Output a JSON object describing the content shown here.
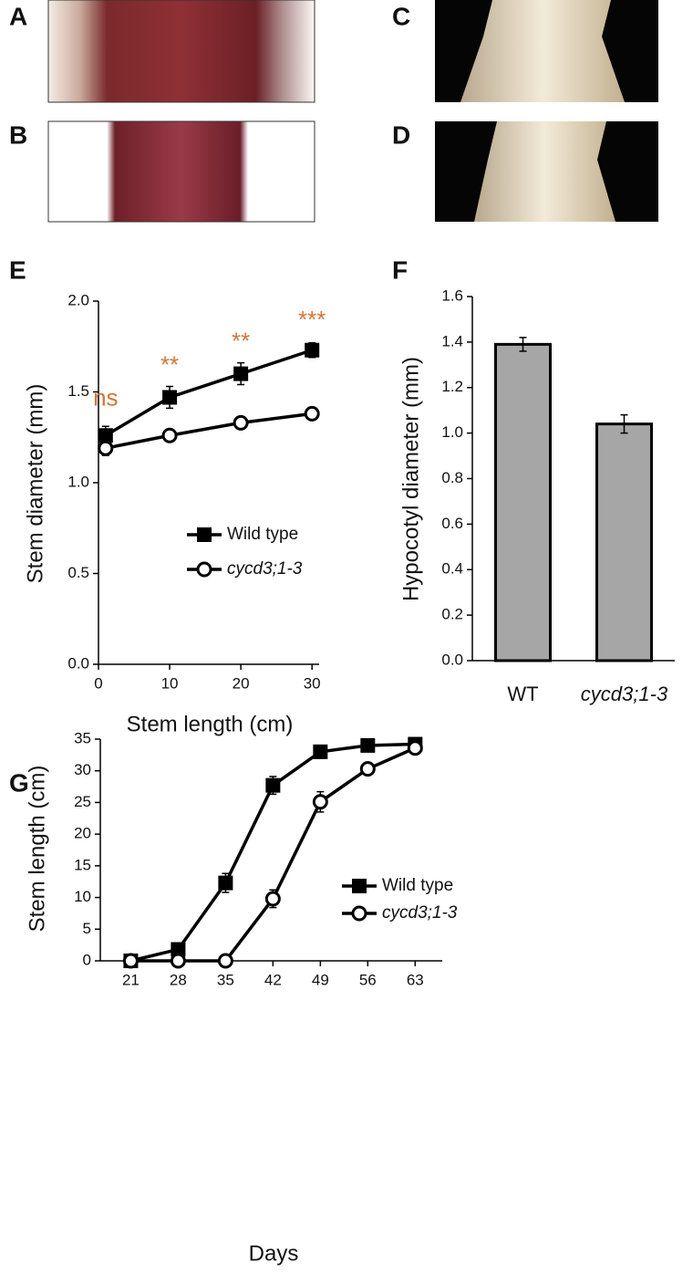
{
  "photo_panels": [
    "A",
    "B",
    "C",
    "D"
  ],
  "chart_data": [
    {
      "type": "line",
      "panel_label": "E",
      "x_label": "Stem length (cm)",
      "y_label": "Stem diameter (mm)",
      "x": [
        1,
        10,
        20,
        30
      ],
      "xlim": [
        0,
        31
      ],
      "xticks": [
        0,
        10,
        20,
        30
      ],
      "ylim": [
        0,
        2
      ],
      "yticks": [
        {
          "value": 0,
          "label": "0.0"
        },
        {
          "value": 0.5,
          "label": "0.5"
        },
        {
          "value": 1,
          "label": "1.0"
        },
        {
          "value": 1.5,
          "label": "1.5"
        },
        {
          "value": 2,
          "label": "2.0"
        }
      ],
      "series": [
        {
          "name": "Wild type",
          "color": "#000000",
          "marker": "square",
          "values": [
            1.26,
            1.47,
            1.6,
            1.73
          ],
          "errors": [
            0.05,
            0.06,
            0.06,
            0.04
          ]
        },
        {
          "name": "cycd3;1-3",
          "color": "#000000",
          "marker": "circle",
          "values": [
            1.19,
            1.26,
            1.33,
            1.38
          ],
          "errors": [
            0.04,
            0.03,
            0.03,
            0.03
          ]
        }
      ],
      "annotations": [
        {
          "text": "ns",
          "x": 1,
          "y": 1.46,
          "color": "#d2773a"
        },
        {
          "text": "**",
          "x": 10,
          "y": 1.64,
          "color": "#d2773a"
        },
        {
          "text": "**",
          "x": 20,
          "y": 1.77,
          "color": "#d2773a"
        },
        {
          "text": "***",
          "x": 30,
          "y": 1.89,
          "color": "#d2773a"
        }
      ]
    },
    {
      "type": "bar",
      "panel_label": "F",
      "y_label": "Hypocotyl diameter (mm)",
      "categories": [
        "WT",
        "cycd3;1-3"
      ],
      "values": [
        1.39,
        1.04
      ],
      "errors": [
        0.03,
        0.04
      ],
      "color": "#a6a6a6",
      "ylim": [
        0,
        1.6
      ],
      "yticks": [
        {
          "value": 0,
          "label": "0.0"
        },
        0.2,
        0.4,
        0.6,
        0.8,
        {
          "value": 1,
          "label": "1.0"
        },
        1.2,
        1.4,
        1.6
      ]
    },
    {
      "type": "line",
      "panel_label": "G",
      "x_label": "Days",
      "y_label": "Stem length (cm)",
      "x": [
        21,
        28,
        35,
        42,
        49,
        56,
        63
      ],
      "xlim": [
        16.5,
        67
      ],
      "xticks": [
        21,
        28,
        35,
        42,
        49,
        56,
        63
      ],
      "ylim": [
        0,
        35
      ],
      "yticks": [
        0,
        5,
        10,
        15,
        20,
        25,
        30,
        35
      ],
      "series": [
        {
          "name": "Wild type",
          "color": "#000000",
          "marker": "square",
          "values": [
            0,
            1.8,
            12.3,
            27.7,
            33,
            34,
            34.2
          ],
          "errors": [
            0,
            0,
            1.5,
            1.4,
            1,
            0.8,
            0.7
          ]
        },
        {
          "name": "cycd3;1-3",
          "color": "#000000",
          "marker": "circle",
          "values": [
            0,
            0,
            0,
            9.8,
            25.1,
            30.3,
            33.6
          ],
          "errors": [
            0,
            0,
            0,
            1.4,
            1.6,
            0.8,
            0.9
          ]
        }
      ]
    }
  ]
}
